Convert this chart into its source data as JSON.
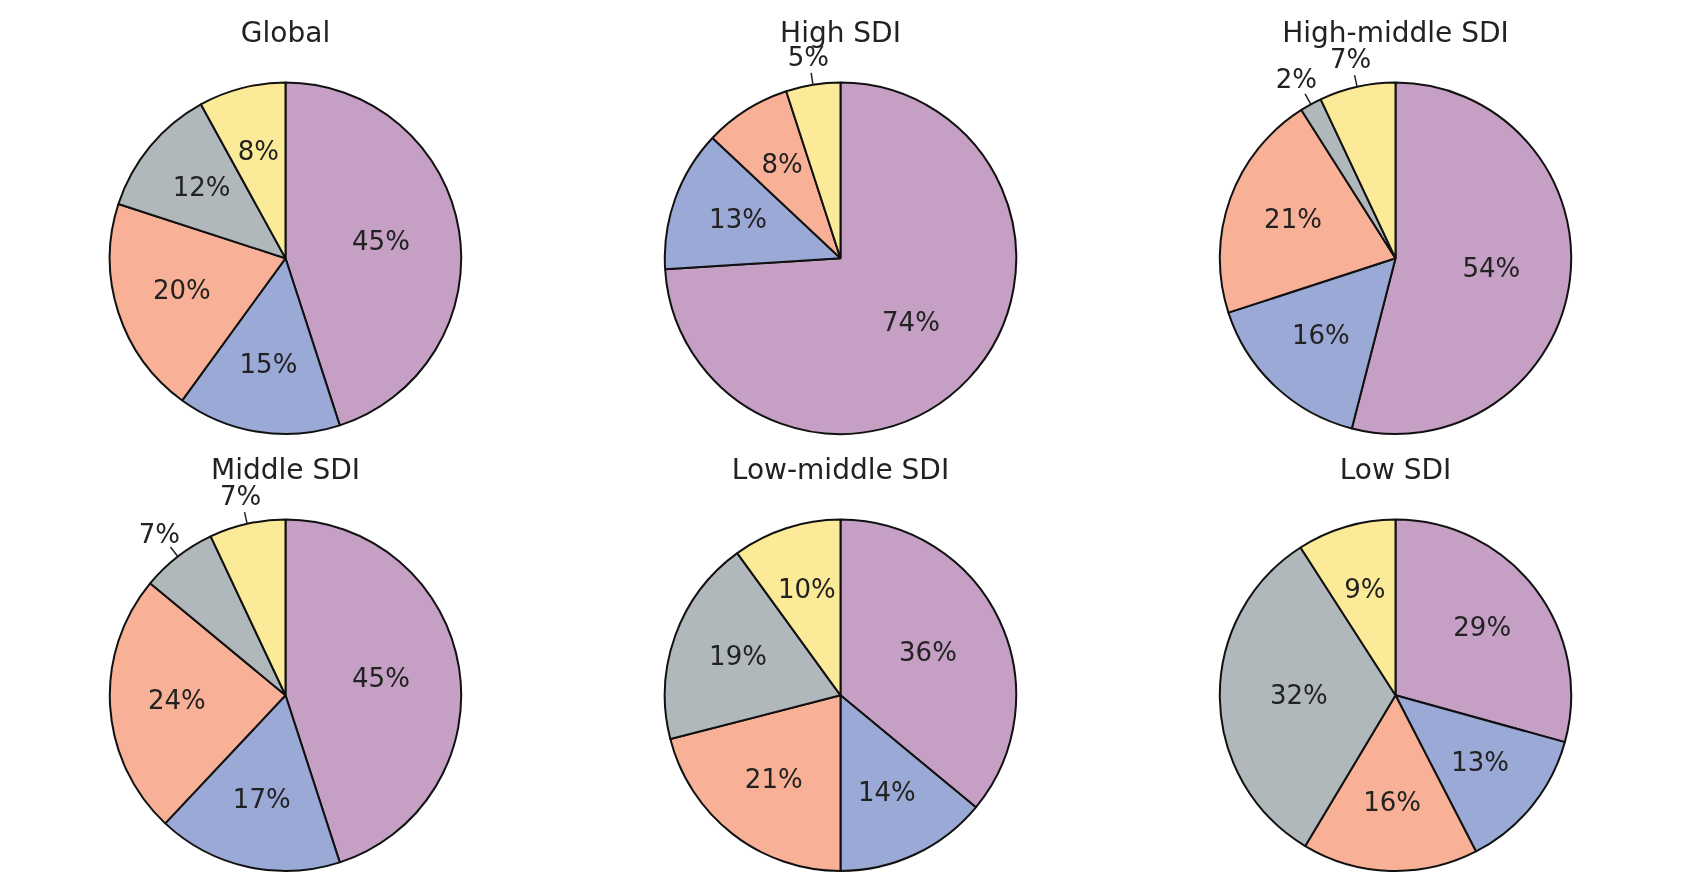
{
  "chart_data": [
    {
      "type": "pie",
      "title": "Global",
      "categories": [
        null,
        null,
        null,
        null,
        null
      ],
      "values": [
        45,
        15,
        20,
        12,
        8
      ],
      "value_labels": [
        "45%",
        "15%",
        "20%",
        "12%",
        "8%"
      ],
      "colors": [
        "#c59fc4",
        "#9aa9d6",
        "#f8b196",
        "#b1b8bc",
        "#fbeb98"
      ],
      "legend": false
    },
    {
      "type": "pie",
      "title": "High SDI",
      "categories": [
        null,
        null,
        null,
        null
      ],
      "values": [
        74,
        13,
        8,
        5
      ],
      "value_labels": [
        "74%",
        "13%",
        "8%",
        "5%"
      ],
      "colors": [
        "#c59fc4",
        "#9aa9d6",
        "#f8b196",
        "#fbeb98"
      ],
      "legend": false
    },
    {
      "type": "pie",
      "title": "High-middle SDI",
      "categories": [
        null,
        null,
        null,
        null,
        null
      ],
      "values": [
        54,
        16,
        21,
        2,
        7
      ],
      "value_labels": [
        "54%",
        "16%",
        "21%",
        "2%",
        "7%"
      ],
      "colors": [
        "#c59fc4",
        "#9aa9d6",
        "#f8b196",
        "#b1b8bc",
        "#fbeb98"
      ],
      "legend": false
    },
    {
      "type": "pie",
      "title": "Middle SDI",
      "categories": [
        null,
        null,
        null,
        null,
        null
      ],
      "values": [
        45,
        17,
        24,
        7,
        7
      ],
      "value_labels": [
        "45%",
        "17%",
        "24%",
        "7%",
        "7%"
      ],
      "colors": [
        "#c59fc4",
        "#9aa9d6",
        "#f8b196",
        "#b1b8bc",
        "#fbeb98"
      ],
      "legend": false
    },
    {
      "type": "pie",
      "title": "Low-middle SDI",
      "categories": [
        null,
        null,
        null,
        null,
        null
      ],
      "values": [
        36,
        14,
        21,
        19,
        10
      ],
      "value_labels": [
        "36%",
        "14%",
        "21%",
        "19%",
        "10%"
      ],
      "colors": [
        "#c59fc4",
        "#9aa9d6",
        "#f8b196",
        "#b1b8bc",
        "#fbeb98"
      ],
      "legend": false
    },
    {
      "type": "pie",
      "title": "Low SDI",
      "categories": [
        null,
        null,
        null,
        null,
        null
      ],
      "values": [
        29,
        13,
        16,
        32,
        9
      ],
      "value_labels": [
        "29%",
        "13%",
        "16%",
        "32%",
        "9%"
      ],
      "colors": [
        "#c59fc4",
        "#9aa9d6",
        "#f8b196",
        "#b1b8bc",
        "#fbeb98"
      ],
      "legend": false
    }
  ]
}
